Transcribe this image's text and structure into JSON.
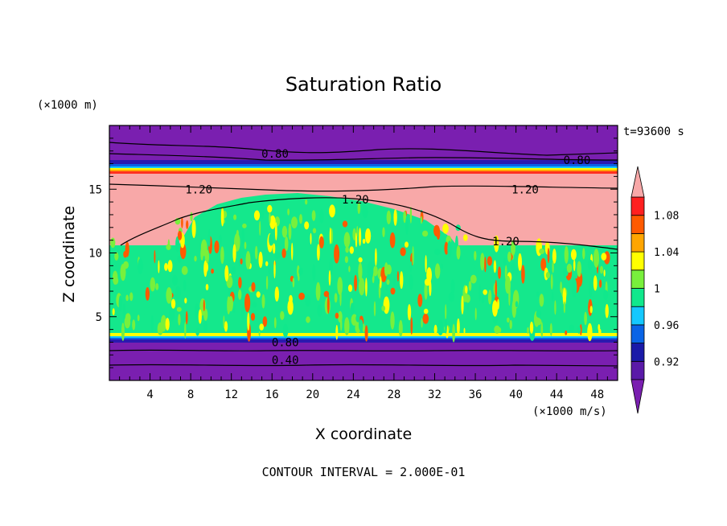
{
  "chart_data": {
    "type": "heatmap",
    "title": "Saturation Ratio",
    "xlabel": "X coordinate",
    "ylabel": "Z coordinate",
    "x_unit": "(×1000 m/s)",
    "y_unit": "(×1000 m)",
    "time_label": "t=93600 s",
    "footer": "CONTOUR INTERVAL = 2.000E-01",
    "xlim": [
      0,
      50
    ],
    "ylim": [
      0,
      20
    ],
    "x_ticks": [
      "4",
      "8",
      "12",
      "16",
      "20",
      "24",
      "28",
      "32",
      "36",
      "40",
      "44",
      "48"
    ],
    "y_ticks": [
      "5",
      "10",
      "15"
    ],
    "colorbar": {
      "tick_labels": [
        "1.08",
        "1.04",
        "1",
        "0.96",
        "0.92"
      ],
      "levels": [
        0.9,
        0.92,
        0.94,
        0.96,
        0.98,
        1.0,
        1.02,
        1.04,
        1.06,
        1.08,
        1.1
      ],
      "colors": {
        "below": "#7a1fb0",
        "bands": [
          "#5a1aa8",
          "#1a1aa8",
          "#0a64e6",
          "#14c8ff",
          "#10e88c",
          "#78f03c",
          "#ffff00",
          "#ffa500",
          "#ff5a00",
          "#ff2020"
        ],
        "above": "#f8a8a8"
      }
    },
    "contour_labels": [
      {
        "text": "0.80",
        "x": 16.3,
        "z": 17.8
      },
      {
        "text": "0.80",
        "x": 46.0,
        "z": 17.3
      },
      {
        "text": "1.20",
        "x": 8.8,
        "z": 15.0
      },
      {
        "text": "1.20",
        "x": 24.2,
        "z": 14.2
      },
      {
        "text": "1.20",
        "x": 40.9,
        "z": 15.0
      },
      {
        "text": "1.20",
        "x": 39.0,
        "z": 10.9
      },
      {
        "text": "0.80",
        "x": 17.3,
        "z": 3.0
      },
      {
        "text": "0.40",
        "x": 17.3,
        "z": 1.6
      }
    ]
  }
}
